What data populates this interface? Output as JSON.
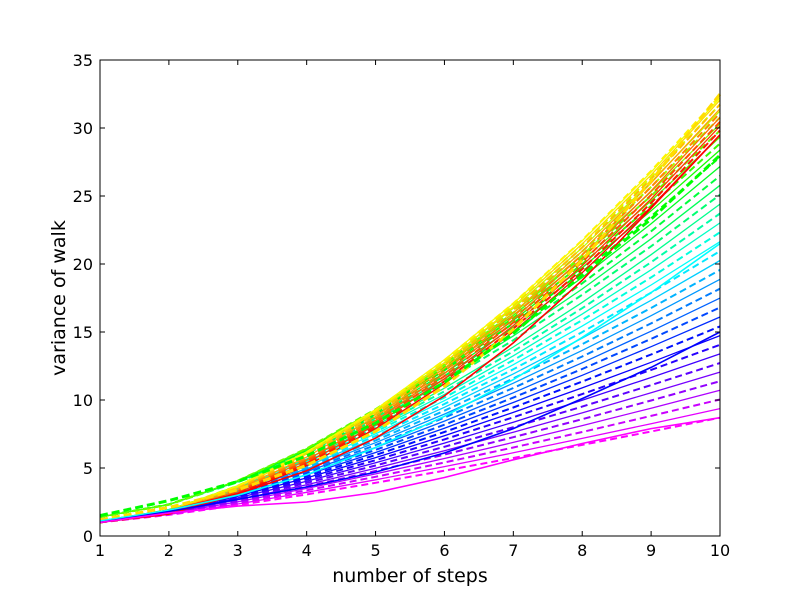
{
  "chart_data": {
    "type": "line",
    "title": "",
    "xlabel": "number of steps",
    "ylabel": "variance of walk",
    "xlim": [
      1,
      10
    ],
    "ylim": [
      0,
      35
    ],
    "xticks": [
      1,
      2,
      3,
      4,
      5,
      6,
      7,
      8,
      9,
      10
    ],
    "yticks": [
      0,
      5,
      10,
      15,
      20,
      25,
      30,
      35
    ],
    "grid": false,
    "legend": "none",
    "x": [
      1,
      2,
      3,
      4,
      5,
      6,
      7,
      8,
      9,
      10
    ],
    "family": {
      "count": 48,
      "hue_start": 0,
      "hue_end": 300,
      "line_styles": [
        "solid",
        "dashed"
      ],
      "start_value": 1.0,
      "end_values_by_hue": [
        {
          "hue": 0,
          "end": 29.5
        },
        {
          "hue": 60,
          "end": 32.5
        },
        {
          "hue": 120,
          "end": 28.0
        },
        {
          "hue": 180,
          "end": 21.5
        },
        {
          "hue": 240,
          "end": 15.0
        },
        {
          "hue": 300,
          "end": 8.7
        }
      ]
    },
    "series_highlights": [
      {
        "color": "#ff0000",
        "style": "solid",
        "values": [
          1.1,
          1.9,
          3.1,
          4.8,
          7.2,
          10.3,
          14.2,
          18.8,
          24.1,
          29.5
        ]
      },
      {
        "color": "#ffdd00",
        "style": "dashed",
        "values": [
          1.2,
          2.1,
          3.4,
          5.2,
          7.7,
          11.0,
          15.2,
          20.3,
          26.1,
          32.5
        ]
      },
      {
        "color": "#00ff00",
        "style": "dashed",
        "values": [
          1.5,
          2.6,
          4.0,
          5.9,
          8.3,
          11.3,
          14.9,
          19.2,
          23.3,
          28.0
        ]
      },
      {
        "color": "#00ffff",
        "style": "solid",
        "values": [
          1.1,
          1.9,
          3.0,
          4.5,
          6.5,
          8.8,
          11.5,
          14.6,
          17.9,
          21.5
        ]
      },
      {
        "color": "#0000ff",
        "style": "solid",
        "values": [
          1.0,
          1.8,
          2.7,
          3.6,
          4.7,
          6.1,
          7.9,
          10.1,
          12.4,
          15.0
        ]
      },
      {
        "color": "#ff00ff",
        "style": "solid",
        "values": [
          1.0,
          1.7,
          2.2,
          2.5,
          3.2,
          4.3,
          5.6,
          6.8,
          7.9,
          8.7
        ]
      }
    ]
  }
}
